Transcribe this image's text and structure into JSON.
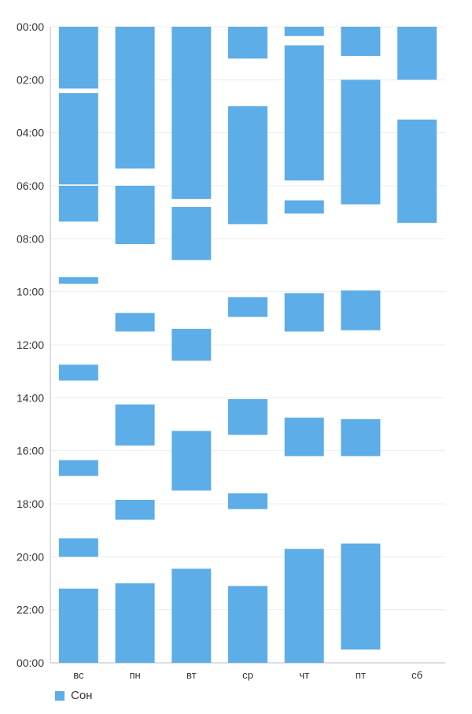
{
  "chart_data": {
    "type": "bar",
    "subtype": "floating-range",
    "categories": [
      "вс",
      "пн",
      "вт",
      "ср",
      "чт",
      "пт",
      "сб"
    ],
    "y_tick_labels": [
      "00:00",
      "02:00",
      "04:00",
      "06:00",
      "08:00",
      "10:00",
      "12:00",
      "14:00",
      "16:00",
      "18:00",
      "20:00",
      "22:00",
      "00:00"
    ],
    "ylim": [
      0,
      24
    ],
    "y_direction": "down",
    "grid": true,
    "legend": "bottom-left",
    "series": [
      {
        "name": "Сон",
        "color": "#5DADE8",
        "ranges": [
          [
            [
              0.0,
              2.33
            ],
            [
              2.5,
              5.95
            ],
            [
              6.0,
              7.35
            ],
            [
              9.45,
              9.7
            ],
            [
              12.75,
              13.35
            ],
            [
              16.35,
              16.95
            ],
            [
              19.3,
              20.0
            ],
            [
              21.2,
              24.0
            ]
          ],
          [
            [
              0.0,
              5.35
            ],
            [
              6.0,
              8.2
            ],
            [
              10.8,
              11.5
            ],
            [
              14.25,
              15.8
            ],
            [
              17.85,
              18.6
            ],
            [
              21.0,
              24.0
            ]
          ],
          [
            [
              0.0,
              6.5
            ],
            [
              6.8,
              8.8
            ],
            [
              11.4,
              12.6
            ],
            [
              15.25,
              17.5
            ],
            [
              20.45,
              24.0
            ]
          ],
          [
            [
              0.0,
              1.2
            ],
            [
              3.0,
              7.45
            ],
            [
              10.2,
              10.95
            ],
            [
              14.05,
              15.4
            ],
            [
              17.6,
              18.2
            ],
            [
              21.1,
              24.0
            ]
          ],
          [
            [
              0.0,
              0.35
            ],
            [
              0.7,
              5.8
            ],
            [
              6.55,
              7.05
            ],
            [
              10.05,
              11.5
            ],
            [
              14.75,
              16.2
            ],
            [
              19.7,
              24.0
            ]
          ],
          [
            [
              0.0,
              1.1
            ],
            [
              2.0,
              6.7
            ],
            [
              9.95,
              11.45
            ],
            [
              14.8,
              16.2
            ],
            [
              19.5,
              23.5
            ]
          ],
          [
            [
              0.0,
              2.0
            ],
            [
              3.5,
              7.4
            ]
          ]
        ]
      }
    ]
  }
}
